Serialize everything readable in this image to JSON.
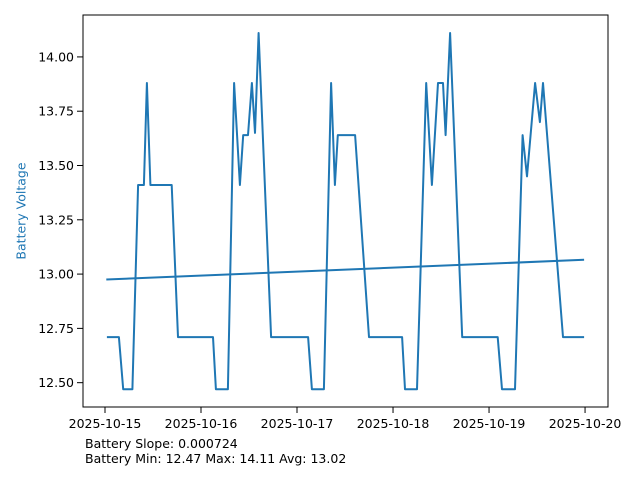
{
  "chart_data": {
    "type": "line",
    "title": "",
    "xlabel": "",
    "ylabel": "Battery Voltage",
    "x_axis_dates": [
      "2025-10-15",
      "2025-10-16",
      "2025-10-17",
      "2025-10-18",
      "2025-10-19",
      "2025-10-20"
    ],
    "x_unit": "days since 2025-10-15",
    "xlim": [
      -0.229,
      5.239
    ],
    "ylim": [
      12.388,
      14.193
    ],
    "grid": false,
    "legend": null,
    "x_ticks": [
      {
        "value": 0,
        "label": "2025-10-15"
      },
      {
        "value": 1,
        "label": "2025-10-16"
      },
      {
        "value": 2,
        "label": "2025-10-17"
      },
      {
        "value": 3,
        "label": "2025-10-18"
      },
      {
        "value": 4,
        "label": "2025-10-19"
      },
      {
        "value": 5,
        "label": "2025-10-20"
      }
    ],
    "y_ticks": [
      {
        "value": 12.5,
        "label": "12.50"
      },
      {
        "value": 12.75,
        "label": "12.75"
      },
      {
        "value": 13.0,
        "label": "13.00"
      },
      {
        "value": 13.25,
        "label": "13.25"
      },
      {
        "value": 13.5,
        "label": "13.50"
      },
      {
        "value": 13.75,
        "label": "13.75"
      },
      {
        "value": 14.0,
        "label": "14.00"
      }
    ],
    "series": [
      {
        "name": "battery-voltage",
        "color": "#1f77b4",
        "width": 2,
        "points": [
          [
            0.02,
            12.71
          ],
          [
            0.145,
            12.71
          ],
          [
            0.19,
            12.47
          ],
          [
            0.285,
            12.47
          ],
          [
            0.345,
            13.41
          ],
          [
            0.405,
            13.41
          ],
          [
            0.437,
            13.88
          ],
          [
            0.473,
            13.41
          ],
          [
            0.695,
            13.41
          ],
          [
            0.76,
            12.71
          ],
          [
            1.125,
            12.71
          ],
          [
            1.155,
            12.47
          ],
          [
            1.28,
            12.47
          ],
          [
            1.345,
            13.88
          ],
          [
            1.405,
            13.41
          ],
          [
            1.44,
            13.64
          ],
          [
            1.49,
            13.64
          ],
          [
            1.53,
            13.88
          ],
          [
            1.562,
            13.65
          ],
          [
            1.6,
            14.11
          ],
          [
            1.73,
            12.71
          ],
          [
            2.115,
            12.71
          ],
          [
            2.155,
            12.47
          ],
          [
            2.28,
            12.47
          ],
          [
            2.355,
            13.88
          ],
          [
            2.395,
            13.41
          ],
          [
            2.425,
            13.64
          ],
          [
            2.605,
            13.64
          ],
          [
            2.75,
            12.71
          ],
          [
            3.095,
            12.71
          ],
          [
            3.125,
            12.47
          ],
          [
            3.25,
            12.47
          ],
          [
            3.345,
            13.88
          ],
          [
            3.405,
            13.41
          ],
          [
            3.468,
            13.88
          ],
          [
            3.52,
            13.88
          ],
          [
            3.548,
            13.64
          ],
          [
            3.594,
            14.11
          ],
          [
            3.72,
            12.71
          ],
          [
            4.09,
            12.71
          ],
          [
            4.135,
            12.47
          ],
          [
            4.27,
            12.47
          ],
          [
            4.35,
            13.64
          ],
          [
            4.395,
            13.45
          ],
          [
            4.48,
            13.88
          ],
          [
            4.53,
            13.7
          ],
          [
            4.562,
            13.88
          ],
          [
            4.77,
            12.71
          ],
          [
            4.99,
            12.71
          ]
        ]
      },
      {
        "name": "trend",
        "color": "#1f77b4",
        "width": 2,
        "points": [
          [
            0.014,
            12.975
          ],
          [
            4.99,
            13.066
          ]
        ]
      }
    ]
  },
  "annotations": {
    "slope_line": "Battery Slope: 0.000724",
    "stats_line": "Battery Min: 12.47 Max: 14.11 Avg: 13.02"
  },
  "stats": {
    "slope": "0.000724",
    "min": "12.47",
    "max": "14.11",
    "avg": "13.02"
  },
  "colors": {
    "accent": "#1f77b4",
    "text": "#000000",
    "background": "#ffffff"
  }
}
